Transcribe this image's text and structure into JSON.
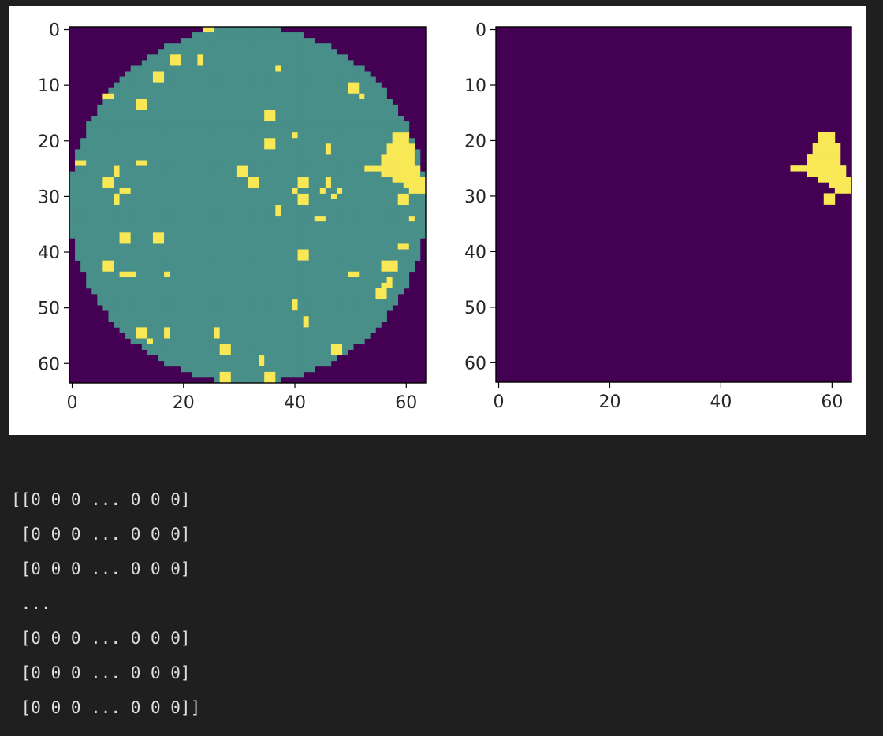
{
  "colors": {
    "background": "#1f1f1f",
    "figure_bg": "#ffffff",
    "cmap_low": "#440154",
    "cmap_mid": "#488e89",
    "cmap_high": "#f9e855",
    "text_output": "#dedede"
  },
  "chart_data": [
    {
      "type": "heatmap",
      "colormap": "viridis",
      "shape": [
        64,
        64
      ],
      "xticks": [
        0,
        20,
        40,
        60
      ],
      "yticks": [
        0,
        10,
        20,
        30,
        40,
        50,
        60
      ],
      "xlim": [
        -0.5,
        63.5
      ],
      "ylim": [
        63.5,
        -0.5
      ],
      "value_levels": [
        0,
        1,
        2
      ],
      "description_of_values": "0 outside the circular wafer, 1 inside the wafer, 2 marked cells",
      "circle": {
        "center": [
          31.5,
          31.5
        ],
        "radius": 32
      },
      "cluster_cells": [
        [
          19,
          58
        ],
        [
          19,
          59
        ],
        [
          19,
          60
        ],
        [
          20,
          58
        ],
        [
          20,
          59
        ],
        [
          20,
          60
        ],
        [
          21,
          57
        ],
        [
          21,
          58
        ],
        [
          21,
          59
        ],
        [
          21,
          60
        ],
        [
          21,
          61
        ],
        [
          22,
          57
        ],
        [
          22,
          58
        ],
        [
          22,
          59
        ],
        [
          22,
          60
        ],
        [
          22,
          61
        ],
        [
          23,
          56
        ],
        [
          23,
          57
        ],
        [
          23,
          58
        ],
        [
          23,
          59
        ],
        [
          23,
          60
        ],
        [
          23,
          61
        ],
        [
          24,
          56
        ],
        [
          24,
          57
        ],
        [
          24,
          58
        ],
        [
          24,
          59
        ],
        [
          24,
          60
        ],
        [
          24,
          61
        ],
        [
          25,
          53
        ],
        [
          25,
          54
        ],
        [
          25,
          55
        ],
        [
          25,
          56
        ],
        [
          25,
          57
        ],
        [
          25,
          58
        ],
        [
          25,
          59
        ],
        [
          25,
          60
        ],
        [
          25,
          61
        ],
        [
          25,
          62
        ],
        [
          26,
          56
        ],
        [
          26,
          57
        ],
        [
          26,
          58
        ],
        [
          26,
          59
        ],
        [
          26,
          60
        ],
        [
          26,
          61
        ],
        [
          26,
          62
        ],
        [
          27,
          58
        ],
        [
          27,
          59
        ],
        [
          27,
          60
        ],
        [
          27,
          61
        ],
        [
          27,
          62
        ],
        [
          27,
          63
        ],
        [
          28,
          60
        ],
        [
          28,
          61
        ],
        [
          28,
          62
        ],
        [
          28,
          63
        ],
        [
          29,
          61
        ],
        [
          29,
          62
        ],
        [
          29,
          63
        ],
        [
          30,
          59
        ],
        [
          30,
          60
        ],
        [
          31,
          59
        ],
        [
          31,
          60
        ]
      ],
      "scattered_cells": [
        [
          0,
          24
        ],
        [
          0,
          25
        ],
        [
          5,
          18
        ],
        [
          5,
          19
        ],
        [
          5,
          23
        ],
        [
          6,
          18
        ],
        [
          6,
          19
        ],
        [
          6,
          23
        ],
        [
          7,
          37
        ],
        [
          8,
          15
        ],
        [
          8,
          16
        ],
        [
          9,
          15
        ],
        [
          9,
          16
        ],
        [
          10,
          50
        ],
        [
          10,
          51
        ],
        [
          11,
          50
        ],
        [
          11,
          51
        ],
        [
          12,
          6
        ],
        [
          12,
          7
        ],
        [
          12,
          52
        ],
        [
          13,
          12
        ],
        [
          13,
          13
        ],
        [
          14,
          12
        ],
        [
          14,
          13
        ],
        [
          15,
          35
        ],
        [
          15,
          36
        ],
        [
          16,
          35
        ],
        [
          16,
          36
        ],
        [
          19,
          40
        ],
        [
          20,
          35
        ],
        [
          20,
          36
        ],
        [
          21,
          35
        ],
        [
          21,
          36
        ],
        [
          21,
          46
        ],
        [
          22,
          46
        ],
        [
          24,
          1
        ],
        [
          24,
          2
        ],
        [
          24,
          12
        ],
        [
          24,
          13
        ],
        [
          25,
          8
        ],
        [
          25,
          30
        ],
        [
          25,
          31
        ],
        [
          26,
          8
        ],
        [
          26,
          30
        ],
        [
          26,
          31
        ],
        [
          27,
          6
        ],
        [
          27,
          7
        ],
        [
          27,
          32
        ],
        [
          27,
          33
        ],
        [
          27,
          41
        ],
        [
          27,
          42
        ],
        [
          27,
          46
        ],
        [
          28,
          6
        ],
        [
          28,
          7
        ],
        [
          28,
          32
        ],
        [
          28,
          33
        ],
        [
          28,
          41
        ],
        [
          28,
          42
        ],
        [
          28,
          46
        ],
        [
          29,
          9
        ],
        [
          29,
          10
        ],
        [
          29,
          40
        ],
        [
          29,
          45
        ],
        [
          29,
          48
        ],
        [
          30,
          8
        ],
        [
          30,
          41
        ],
        [
          30,
          42
        ],
        [
          30,
          47
        ],
        [
          31,
          8
        ],
        [
          31,
          41
        ],
        [
          31,
          42
        ],
        [
          32,
          37
        ],
        [
          33,
          37
        ],
        [
          34,
          44
        ],
        [
          34,
          45
        ],
        [
          34,
          61
        ],
        [
          37,
          9
        ],
        [
          37,
          10
        ],
        [
          37,
          15
        ],
        [
          37,
          16
        ],
        [
          38,
          9
        ],
        [
          38,
          10
        ],
        [
          38,
          15
        ],
        [
          38,
          16
        ],
        [
          39,
          59
        ],
        [
          39,
          60
        ],
        [
          40,
          41
        ],
        [
          40,
          42
        ],
        [
          41,
          41
        ],
        [
          41,
          42
        ],
        [
          42,
          6
        ],
        [
          42,
          7
        ],
        [
          42,
          56
        ],
        [
          42,
          57
        ],
        [
          42,
          58
        ],
        [
          43,
          6
        ],
        [
          43,
          7
        ],
        [
          43,
          56
        ],
        [
          43,
          57
        ],
        [
          43,
          58
        ],
        [
          44,
          9
        ],
        [
          44,
          10
        ],
        [
          44,
          11
        ],
        [
          44,
          17
        ],
        [
          44,
          50
        ],
        [
          44,
          51
        ],
        [
          45,
          57
        ],
        [
          46,
          56
        ],
        [
          46,
          57
        ],
        [
          47,
          55
        ],
        [
          47,
          56
        ],
        [
          48,
          55
        ],
        [
          48,
          56
        ],
        [
          49,
          40
        ],
        [
          50,
          40
        ],
        [
          52,
          42
        ],
        [
          53,
          42
        ],
        [
          54,
          12
        ],
        [
          54,
          13
        ],
        [
          54,
          17
        ],
        [
          54,
          26
        ],
        [
          55,
          12
        ],
        [
          55,
          13
        ],
        [
          55,
          17
        ],
        [
          55,
          26
        ],
        [
          56,
          14
        ],
        [
          57,
          27
        ],
        [
          57,
          28
        ],
        [
          57,
          47
        ],
        [
          57,
          48
        ],
        [
          58,
          27
        ],
        [
          58,
          28
        ],
        [
          58,
          47
        ],
        [
          58,
          48
        ],
        [
          59,
          34
        ],
        [
          60,
          34
        ],
        [
          62,
          27
        ],
        [
          62,
          28
        ],
        [
          62,
          35
        ],
        [
          62,
          36
        ],
        [
          63,
          27
        ],
        [
          63,
          28
        ],
        [
          63,
          35
        ],
        [
          63,
          36
        ]
      ]
    },
    {
      "type": "heatmap",
      "colormap": "viridis",
      "shape": [
        64,
        64
      ],
      "xticks": [
        0,
        20,
        40,
        60
      ],
      "yticks": [
        0,
        10,
        20,
        30,
        40,
        50,
        60
      ],
      "xlim": [
        -0.5,
        63.5
      ],
      "ylim": [
        63.5,
        -0.5
      ],
      "value_levels": [
        0,
        1
      ],
      "description_of_values": "0 background, 1 cluster cells",
      "cluster_cells_same_as_left": true
    }
  ],
  "array_output": [
    "[[0 0 0 ... 0 0 0]",
    " [0 0 0 ... 0 0 0]",
    " [0 0 0 ... 0 0 0]",
    " ...",
    " [0 0 0 ... 0 0 0]",
    " [0 0 0 ... 0 0 0]",
    " [0 0 0 ... 0 0 0]]"
  ]
}
